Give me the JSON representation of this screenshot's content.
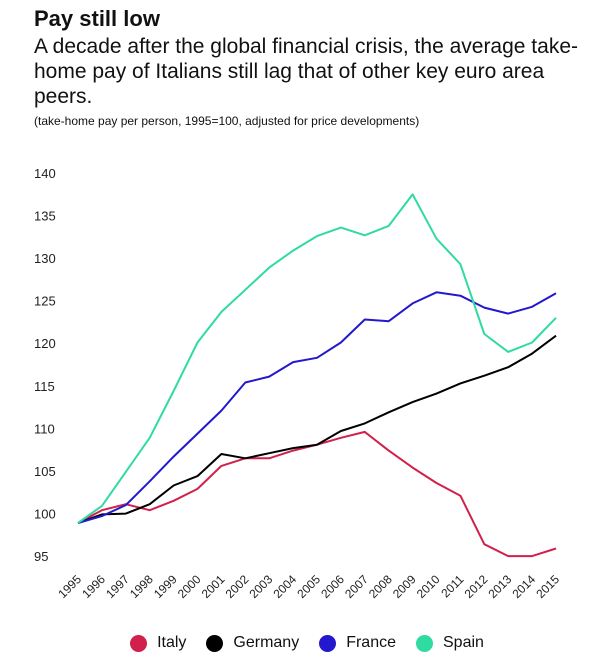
{
  "header": {
    "title": "Pay still low",
    "subtitle": "A decade after the global financial crisis, the average take-home pay of Italians still lag that of other key euro area peers.",
    "note": "(take-home pay per person, 1995=100, adjusted for price developments)"
  },
  "chart_data": {
    "type": "line",
    "x": [
      "1995",
      "1996",
      "1997",
      "1998",
      "1999",
      "2000",
      "2001",
      "2002",
      "2003",
      "2004",
      "2005",
      "2006",
      "2007",
      "2008",
      "2009",
      "2010",
      "2011",
      "2012",
      "2013",
      "2014",
      "2015"
    ],
    "yticks": [
      "95",
      "100",
      "105",
      "110",
      "115",
      "120",
      "125",
      "130",
      "135",
      "140"
    ],
    "ylim": [
      95,
      140
    ],
    "grid": false,
    "legend": "bottom",
    "series": [
      {
        "name": "Italy",
        "color": "#d0204b",
        "values": [
          99,
          100.5,
          101.2,
          100.5,
          101.6,
          103,
          105.7,
          106.6,
          106.6,
          107.5,
          108.2,
          109,
          109.7,
          107.5,
          105.5,
          103.7,
          102.2,
          96.5,
          95.1,
          95.1,
          96
        ]
      },
      {
        "name": "Germany",
        "color": "#000000",
        "values": [
          99,
          100,
          100.1,
          101.2,
          103.4,
          104.5,
          107.1,
          106.6,
          107.2,
          107.8,
          108.2,
          109.8,
          110.7,
          112,
          113.2,
          114.2,
          115.4,
          116.3,
          117.3,
          118.9,
          121
        ]
      },
      {
        "name": "France",
        "color": "#2318cc",
        "values": [
          99,
          99.8,
          101.1,
          103.9,
          106.8,
          109.5,
          112.2,
          115.5,
          116.2,
          117.9,
          118.4,
          120.2,
          122.9,
          122.7,
          124.8,
          126.1,
          125.7,
          124.3,
          123.6,
          124.4,
          126
        ]
      },
      {
        "name": "Spain",
        "color": "#2fdba0",
        "values": [
          99,
          101,
          105,
          109,
          114.5,
          120.2,
          123.8,
          126.4,
          129,
          131,
          132.7,
          133.7,
          132.8,
          133.9,
          137.6,
          132.4,
          129.4,
          121.2,
          119.1,
          120.2,
          123.1
        ]
      }
    ]
  }
}
